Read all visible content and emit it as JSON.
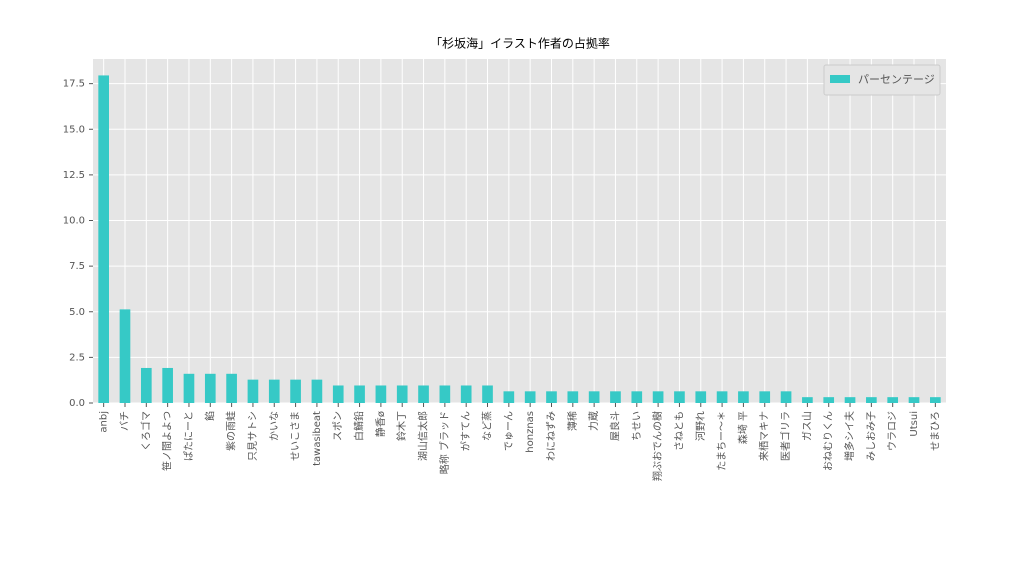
{
  "chart_data": {
    "type": "bar",
    "title": "「杉坂海」イラスト作者の占拠率",
    "categories": [
      "anbj",
      "バチ",
      "くろゴマ",
      "笹ノ間よよつ",
      "ぱたにーと",
      "餡",
      "紫の雨蛙",
      "只見サトシ",
      "かいな",
      "せいこさま",
      "tawasibeat",
      "スポン",
      "白鯖鉛",
      "静香ø",
      "鈴木丁",
      "湖山信太郎",
      "略称 ブラッド",
      "がすてん",
      "など蒸",
      "でゅーん",
      "honznas",
      "わにねずみ",
      "薄稀",
      "力蔵",
      "屋良斗",
      "ちせい",
      "翔ぶおでんの樹",
      "さねとも",
      "河野れ",
      "たまちー〜＊",
      "森埼 平",
      "来栖マキナ",
      "医者ゴリラ",
      "ガス山",
      "おねむりくん",
      "増多シイ夫",
      "みしおみ子",
      "ウラロジ",
      "Utsui",
      "せまひろ"
    ],
    "series": [
      {
        "name": "パーセンテージ",
        "color": "#36c9c6",
        "values": [
          17.95,
          5.13,
          1.92,
          1.92,
          1.6,
          1.6,
          1.6,
          1.28,
          1.28,
          1.28,
          1.28,
          0.96,
          0.96,
          0.96,
          0.96,
          0.96,
          0.96,
          0.96,
          0.96,
          0.64,
          0.64,
          0.64,
          0.64,
          0.64,
          0.64,
          0.64,
          0.64,
          0.64,
          0.64,
          0.64,
          0.64,
          0.64,
          0.64,
          0.32,
          0.32,
          0.32,
          0.32,
          0.32,
          0.32,
          0.32
        ]
      }
    ],
    "ylim": [
      0,
      18.85
    ],
    "yticks": [
      {
        "value": 0,
        "label": "0.0"
      },
      2.5,
      {
        "value": 5,
        "label": "5.0"
      },
      7.5,
      {
        "value": 10,
        "label": "10.0"
      },
      12.5,
      {
        "value": 15,
        "label": "15.0"
      },
      17.5
    ],
    "grid": true,
    "legend": "upper right"
  }
}
